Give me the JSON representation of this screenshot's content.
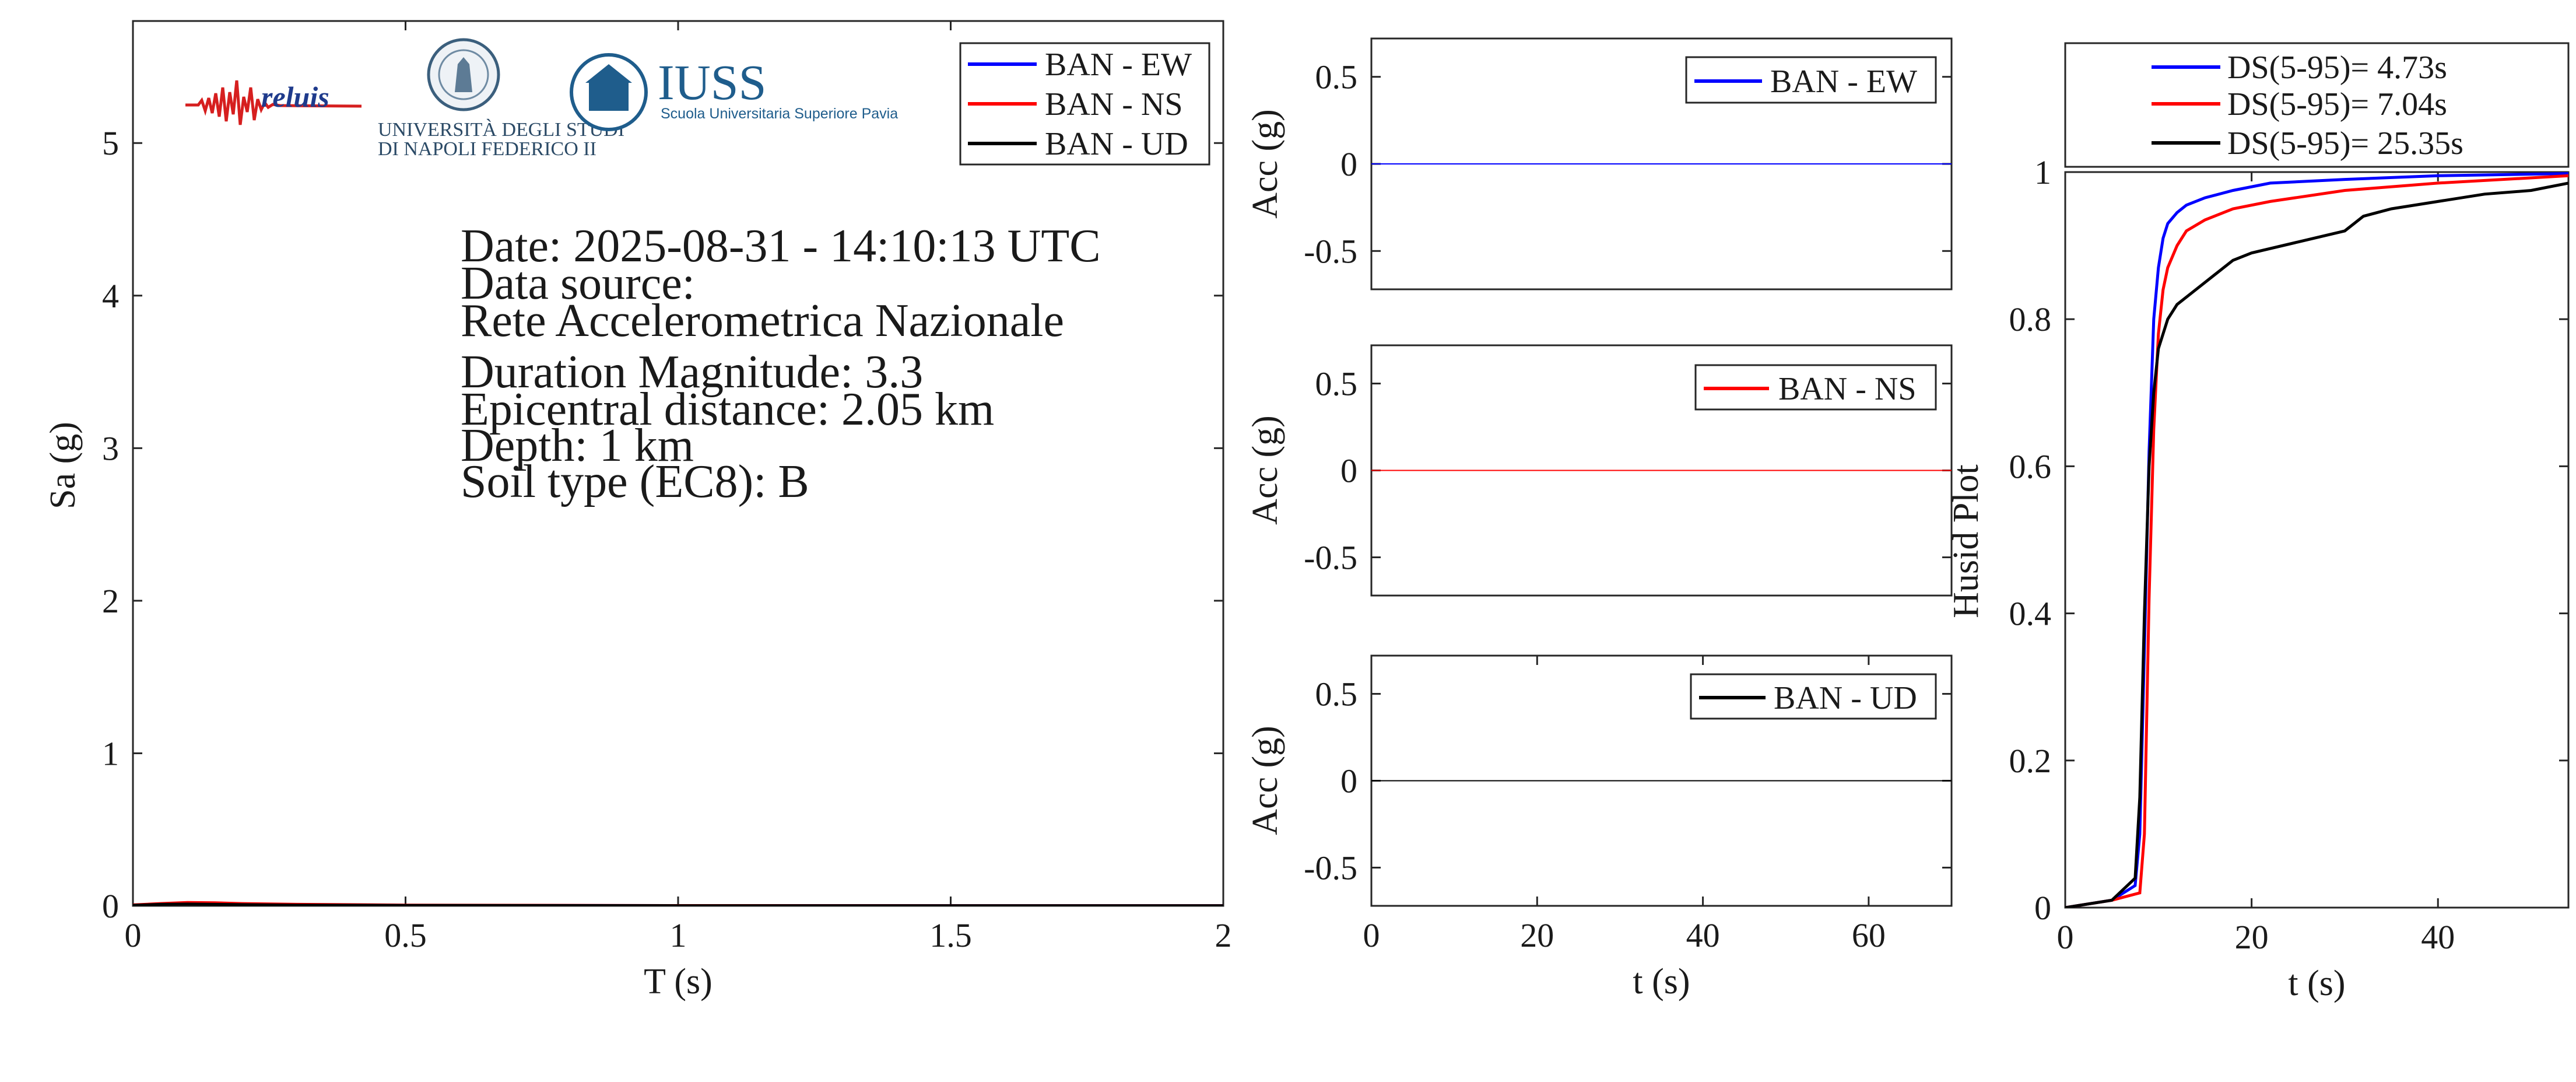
{
  "logos": {
    "reluis": "reluis",
    "unina_line1": "UNIVERSITÀ DEGLI STUDI",
    "unina_line2": "DI NAPOLI FEDERICO II",
    "iuss_title": "IUSS",
    "iuss_subtitle": "Scuola Universitaria Superiore Pavia"
  },
  "info": {
    "date": "Date: 2025-08-31 - 14:10:13 UTC",
    "source_label": "Data source:",
    "source_value": "Rete Accelerometrica Nazionale",
    "magnitude": "Duration Magnitude: 3.3",
    "distance": "Epicentral distance: 2.05 km",
    "depth": "Depth: 1 km",
    "soil": "Soil type (EC8): B"
  },
  "colors": {
    "ew": "#0000ff",
    "ns": "#ff0000",
    "ud": "#000000",
    "axis": "#262626"
  },
  "chart_data": [
    {
      "type": "line",
      "xlabel": "T (s)",
      "ylabel": "Sa (g)",
      "xlim": [
        0,
        2
      ],
      "ylim": [
        0,
        5.8
      ],
      "xticks": [
        0,
        0.5,
        1,
        1.5,
        2
      ],
      "xtick_labels": [
        "0",
        "0.5",
        "1",
        "1.5",
        "2"
      ],
      "yticks": [
        0,
        1,
        2,
        3,
        4,
        5
      ],
      "ytick_labels": [
        "0",
        "1",
        "2",
        "3",
        "4",
        "5"
      ],
      "legend_position": "top-right",
      "series": [
        {
          "name": "BAN - EW",
          "color": "#0000ff",
          "x": [
            0,
            0.05,
            0.1,
            0.15,
            0.2,
            0.3,
            0.5,
            1,
            1.5,
            2
          ],
          "y": [
            0.005,
            0.012,
            0.018,
            0.015,
            0.012,
            0.008,
            0.004,
            0.002,
            0.001,
            0.001
          ]
        },
        {
          "name": "BAN - NS",
          "color": "#ff0000",
          "x": [
            0,
            0.05,
            0.1,
            0.15,
            0.2,
            0.3,
            0.5,
            1,
            1.5,
            2
          ],
          "y": [
            0.006,
            0.015,
            0.022,
            0.02,
            0.015,
            0.01,
            0.005,
            0.002,
            0.001,
            0.001
          ]
        },
        {
          "name": "BAN - UD",
          "color": "#000000",
          "x": [
            0,
            0.05,
            0.1,
            0.15,
            0.2,
            0.3,
            0.5,
            1,
            1.5,
            2
          ],
          "y": [
            0.004,
            0.01,
            0.012,
            0.01,
            0.008,
            0.005,
            0.003,
            0.001,
            0.001,
            0.001
          ]
        }
      ]
    },
    {
      "type": "line",
      "xlabel": "",
      "ylabel": "Acc (g)",
      "xlim": [
        0,
        70
      ],
      "ylim": [
        -0.72,
        0.72
      ],
      "yticks": [
        -0.5,
        0,
        0.5
      ],
      "ytick_labels": [
        "-0.5",
        "0",
        "0.5"
      ],
      "legend_position": "top-right",
      "series": [
        {
          "name": "BAN - EW",
          "color": "#0000ff",
          "x": [
            0,
            70
          ],
          "y": [
            0,
            0
          ]
        }
      ]
    },
    {
      "type": "line",
      "xlabel": "",
      "ylabel": "Acc (g)",
      "xlim": [
        0,
        70
      ],
      "ylim": [
        -0.72,
        0.72
      ],
      "yticks": [
        -0.5,
        0,
        0.5
      ],
      "ytick_labels": [
        "-0.5",
        "0",
        "0.5"
      ],
      "legend_position": "top-right",
      "series": [
        {
          "name": "BAN - NS",
          "color": "#ff0000",
          "x": [
            0,
            70
          ],
          "y": [
            0,
            0
          ]
        }
      ]
    },
    {
      "type": "line",
      "xlabel": "t (s)",
      "ylabel": "Acc (g)",
      "xlim": [
        0,
        70
      ],
      "ylim": [
        -0.72,
        0.72
      ],
      "xticks": [
        0,
        20,
        40,
        60
      ],
      "xtick_labels": [
        "0",
        "20",
        "40",
        "60"
      ],
      "yticks": [
        -0.5,
        0,
        0.5
      ],
      "ytick_labels": [
        "-0.5",
        "0",
        "0.5"
      ],
      "legend_position": "top-right",
      "series": [
        {
          "name": "BAN - UD",
          "color": "#000000",
          "x": [
            0,
            70
          ],
          "y": [
            0,
            0
          ]
        }
      ]
    },
    {
      "type": "line",
      "xlabel": "t (s)",
      "ylabel": "Husid Plot",
      "xlim": [
        0,
        54
      ],
      "ylim": [
        0,
        1
      ],
      "xticks": [
        0,
        20,
        40
      ],
      "xtick_labels": [
        "0",
        "20",
        "40"
      ],
      "yticks": [
        0,
        0.2,
        0.4,
        0.6,
        0.8,
        1
      ],
      "ytick_labels": [
        "0",
        "0.2",
        "0.4",
        "0.6",
        "0.8",
        "1"
      ],
      "legend_position": "above",
      "series": [
        {
          "name": "DS(5-95)= 4.73s",
          "color": "#0000ff",
          "x": [
            0,
            5,
            7.5,
            8,
            8.5,
            9,
            9.5,
            10,
            10.5,
            11,
            12,
            13,
            15,
            18,
            22,
            30,
            40,
            54
          ],
          "y": [
            0,
            0.01,
            0.03,
            0.1,
            0.35,
            0.62,
            0.8,
            0.87,
            0.91,
            0.93,
            0.945,
            0.955,
            0.965,
            0.975,
            0.985,
            0.99,
            0.995,
            0.998
          ]
        },
        {
          "name": "DS(5-95)= 7.04s",
          "color": "#ff0000",
          "x": [
            0,
            5,
            8,
            8.5,
            9,
            9.5,
            10,
            10.5,
            11,
            12,
            13,
            15,
            18,
            22,
            30,
            40,
            54
          ],
          "y": [
            0,
            0.01,
            0.02,
            0.1,
            0.42,
            0.65,
            0.78,
            0.84,
            0.87,
            0.9,
            0.92,
            0.935,
            0.95,
            0.96,
            0.975,
            0.985,
            0.995
          ]
        },
        {
          "name": "DS(5-95)= 25.35s",
          "color": "#000000",
          "x": [
            0,
            5,
            7.5,
            8,
            8.5,
            9,
            9.5,
            10,
            11,
            12,
            14,
            16,
            18,
            20,
            25,
            30,
            32,
            35,
            40,
            45,
            50,
            54
          ],
          "y": [
            0,
            0.01,
            0.04,
            0.15,
            0.4,
            0.6,
            0.7,
            0.76,
            0.8,
            0.82,
            0.84,
            0.86,
            0.88,
            0.89,
            0.905,
            0.92,
            0.94,
            0.95,
            0.96,
            0.97,
            0.975,
            0.985
          ]
        }
      ]
    }
  ]
}
